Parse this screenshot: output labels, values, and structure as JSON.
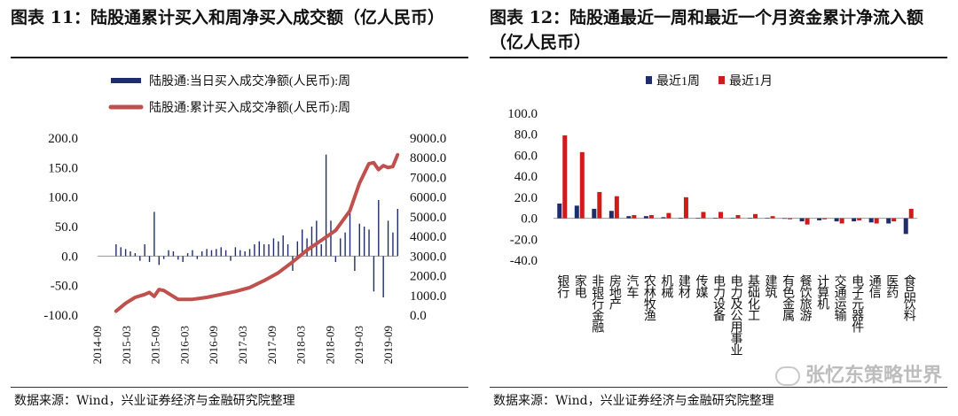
{
  "left": {
    "title": "图表 11：陆股通累计买入和周净买入成交额（亿人民币）",
    "source": "数据来源：Wind，兴业证券经济与金融研究院整理"
  },
  "right": {
    "title": "图表 12：陆股通最近一周和最近一个月资金累计净流入额（亿人民币）",
    "source": "数据来源：Wind，兴业证券经济与金融研究院整理"
  },
  "watermark": "张忆东策略世界",
  "colors": {
    "bar_navy": "#1f2d6b",
    "line_red": "#c0504d",
    "bar_red": "#d11a1a"
  },
  "chart_data": [
    {
      "type": "bar+line",
      "legend_placement": "top-center",
      "series": [
        {
          "name": "陆股通:当日买入成交净额(人民币):周",
          "axis": "left",
          "style": "bar",
          "color": "#1f2d6b",
          "x": [
            "2014-11",
            "2014-12",
            "2015-01",
            "2015-02",
            "2015-03",
            "2015-04",
            "2015-05",
            "2015-06",
            "2015-07",
            "2015-08",
            "2015-09",
            "2015-10",
            "2015-11",
            "2015-12",
            "2016-01",
            "2016-02",
            "2016-03",
            "2016-04",
            "2016-05",
            "2016-06",
            "2016-07",
            "2016-08",
            "2016-09",
            "2016-10",
            "2016-11",
            "2016-12",
            "2017-01",
            "2017-02",
            "2017-03",
            "2017-04",
            "2017-05",
            "2017-06",
            "2017-07",
            "2017-08",
            "2017-09",
            "2017-10",
            "2017-11",
            "2017-12",
            "2018-01",
            "2018-02",
            "2018-03",
            "2018-04",
            "2018-05",
            "2018-06",
            "2018-07",
            "2018-08",
            "2018-09",
            "2018-10",
            "2018-11",
            "2018-12",
            "2019-01",
            "2019-02",
            "2019-03",
            "2019-04",
            "2019-05",
            "2019-06",
            "2019-07",
            "2019-08",
            "2019-09",
            "2019-10"
          ],
          "values": [
            20,
            15,
            12,
            8,
            5,
            -8,
            20,
            -10,
            75,
            -15,
            -5,
            10,
            8,
            -6,
            -10,
            5,
            10,
            -5,
            8,
            12,
            10,
            12,
            15,
            10,
            -8,
            15,
            10,
            8,
            12,
            20,
            25,
            20,
            20,
            30,
            25,
            35,
            20,
            -25,
            25,
            45,
            30,
            50,
            60,
            20,
            172,
            60,
            -10,
            30,
            40,
            80,
            -25,
            55,
            50,
            45,
            -60,
            95,
            -70,
            60,
            40,
            80
          ]
        },
        {
          "name": "陆股通:累计买入成交净额(人民币):周",
          "axis": "right",
          "style": "line",
          "color": "#c0504d",
          "x": [
            "2014-11",
            "2015-01",
            "2015-03",
            "2015-05",
            "2015-06",
            "2015-07",
            "2015-08",
            "2015-09",
            "2015-12",
            "2016-03",
            "2016-06",
            "2016-09",
            "2016-12",
            "2017-03",
            "2017-06",
            "2017-09",
            "2017-12",
            "2018-03",
            "2018-06",
            "2018-09",
            "2018-12",
            "2019-02",
            "2019-04",
            "2019-05",
            "2019-06",
            "2019-07",
            "2019-08",
            "2019-09",
            "2019-10"
          ],
          "values": [
            200,
            600,
            900,
            1050,
            1150,
            950,
            1300,
            1250,
            800,
            800,
            900,
            1050,
            1200,
            1400,
            1750,
            2150,
            2700,
            3300,
            3800,
            4300,
            5300,
            6700,
            7700,
            7750,
            7400,
            7600,
            7500,
            7550,
            8150
          ]
        }
      ],
      "y_left": {
        "range": [
          -100,
          200
        ],
        "ticks": [
          "-100.0",
          "-50.0",
          "0.0",
          "50.0",
          "100.0",
          "150.0",
          "200.0"
        ]
      },
      "y_right": {
        "range": [
          0,
          9000
        ],
        "ticks": [
          "0.0",
          "1000.0",
          "2000.0",
          "3000.0",
          "4000.0",
          "5000.0",
          "6000.0",
          "7000.0",
          "8000.0",
          "9000.0"
        ]
      },
      "x_ticks": [
        "2014-09",
        "2015-03",
        "2015-09",
        "2016-03",
        "2016-09",
        "2017-03",
        "2017-09",
        "2018-03",
        "2018-09",
        "2019-03",
        "2019-09"
      ]
    },
    {
      "type": "bar",
      "legend_placement": "top-center",
      "categories": [
        "银行",
        "家电",
        "非银行金融",
        "房地产",
        "汽车",
        "农林牧渔",
        "机械",
        "建材",
        "传媒",
        "电力设备",
        "电力及公用事业",
        "基础化工",
        "建筑",
        "有色金属",
        "餐饮旅游",
        "计算机",
        "交通运输",
        "电子元器件",
        "通信",
        "医药",
        "食品饮料"
      ],
      "series": [
        {
          "name": "最近1周",
          "color": "#1f2d6b",
          "values": [
            14,
            12,
            9,
            7,
            2,
            2,
            1,
            0.5,
            0.3,
            0.3,
            0.2,
            0.3,
            0.2,
            -0.5,
            -3,
            -2,
            -3,
            -3,
            -4,
            -5,
            -15
          ]
        },
        {
          "name": "最近1月",
          "color": "#d11a1a",
          "values": [
            79,
            63,
            25,
            21,
            3,
            3,
            5,
            20,
            6,
            6,
            3,
            4,
            2,
            -1,
            -6,
            -1,
            -5,
            -2,
            -5,
            -3,
            9
          ]
        }
      ],
      "ylim": [
        -40,
        100
      ],
      "y_ticks": [
        "-40.0",
        "-20.0",
        "0.0",
        "20.0",
        "40.0",
        "60.0",
        "80.0",
        "100.0"
      ]
    }
  ]
}
